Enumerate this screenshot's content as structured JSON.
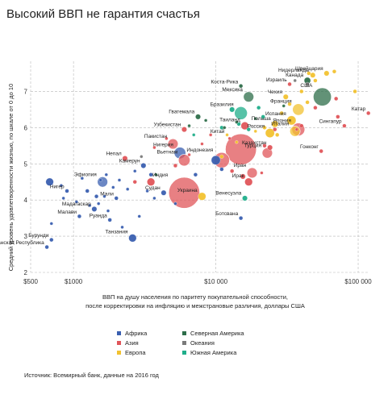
{
  "chart_data": {
    "type": "scatter",
    "title": "Высокий ВВП не гарантия счастья",
    "xlabel_lines": [
      "ВВП на душу населения по паритету покупательной способности,",
      "после корректировки на инфляцию и межстрановые различия, доллары США"
    ],
    "ylabel": "Средний уровень удовлетворенности жизнью, по шкале от 0 до 10",
    "x_scale": "log",
    "xlim": [
      500,
      120000
    ],
    "ylim": [
      2,
      7.7
    ],
    "x_ticks": [
      {
        "value": 500,
        "label": "$500"
      },
      {
        "value": 1000,
        "label": "$1000"
      },
      {
        "value": 10000,
        "label": "$10 000"
      },
      {
        "value": 100000,
        "label": "$100 000"
      }
    ],
    "y_ticks": [
      2,
      3,
      4,
      5,
      6,
      7
    ],
    "grid": "dashed",
    "legend_position": "bottom-left",
    "source": "Источник: Всемирный банк, данные на 2016 год",
    "series": [
      {
        "name": "Африка",
        "color": "#3a5fb0"
      },
      {
        "name": "Азия",
        "color": "#e0555a"
      },
      {
        "name": "Европа",
        "color": "#f2c230"
      },
      {
        "name": "Северная Америка",
        "color": "#2e6e4a"
      },
      {
        "name": "Океания",
        "color": "#7a7a7a"
      },
      {
        "name": "Южная Америка",
        "color": "#1fae8a"
      }
    ],
    "labeled_points": [
      {
        "label": "Нидерланды",
        "series": "Европа",
        "x": 48000,
        "y": 7.45,
        "r": 2
      },
      {
        "label": "Канада",
        "series": "Северная Америка",
        "x": 44000,
        "y": 7.3,
        "r": 2.5
      },
      {
        "label": "Коста-Рика",
        "series": "Северная Америка",
        "x": 15000,
        "y": 7.15,
        "r": 1.5
      },
      {
        "label": "Мексика",
        "series": "Северная Америка",
        "x": 17000,
        "y": 6.85,
        "r": 4
      },
      {
        "label": "Израиль",
        "series": "Азия",
        "x": 33000,
        "y": 7.2,
        "r": 1.5
      },
      {
        "label": "США",
        "series": "Северная Америка",
        "x": 56000,
        "y": 6.85,
        "r": 7
      },
      {
        "label": "Чехия",
        "series": "Европа",
        "x": 31000,
        "y": 6.85,
        "r": 2
      },
      {
        "label": "Катар",
        "series": "Азия",
        "x": 118000,
        "y": 6.4,
        "r": 1.5
      },
      {
        "label": "Бразилия",
        "series": "Южная Америка",
        "x": 15000,
        "y": 6.4,
        "r": 5
      },
      {
        "label": "Франция",
        "series": "Европа",
        "x": 38000,
        "y": 6.5,
        "r": 4.5
      },
      {
        "label": "Гватемала",
        "series": "Северная Америка",
        "x": 7500,
        "y": 6.3,
        "r": 2
      },
      {
        "label": "Япония",
        "series": "Азия",
        "x": 38000,
        "y": 5.95,
        "r": 5
      },
      {
        "label": "Таиланд",
        "series": "Азия",
        "x": 16000,
        "y": 6.05,
        "r": 3
      },
      {
        "label": "Польша",
        "series": "Европа",
        "x": 26000,
        "y": 6.1,
        "r": 2.5
      },
      {
        "label": "Узбекистан",
        "series": "Азия",
        "x": 6000,
        "y": 5.95,
        "r": 2
      },
      {
        "label": "Испания",
        "series": "Европа",
        "x": 34000,
        "y": 6.2,
        "r": 3.5
      },
      {
        "label": "Сингапур",
        "series": "Азия",
        "x": 80000,
        "y": 6.05,
        "r": 1.5
      },
      {
        "label": "Россия",
        "series": "Европа",
        "x": 24000,
        "y": 5.85,
        "r": 3.5
      },
      {
        "label": "Италия",
        "series": "Европа",
        "x": 36000,
        "y": 5.9,
        "r": 4
      },
      {
        "label": "Пакистан",
        "series": "Азия",
        "x": 5000,
        "y": 5.55,
        "r": 4
      },
      {
        "label": "Китай",
        "series": "Азия",
        "x": 15000,
        "y": 5.4,
        "r": 12
      },
      {
        "label": "Казахстан",
        "series": "Азия",
        "x": 24000,
        "y": 5.45,
        "r": 2
      },
      {
        "label": "Гонконг",
        "series": "Азия",
        "x": 55000,
        "y": 5.35,
        "r": 1.5
      },
      {
        "label": "Нигерия",
        "series": "Африка",
        "x": 5600,
        "y": 5.3,
        "r": 4.5
      },
      {
        "label": "Непал",
        "series": "Азия",
        "x": 2300,
        "y": 5.15,
        "r": 2
      },
      {
        "label": "Вьетнам",
        "series": "Азия",
        "x": 6000,
        "y": 5.1,
        "r": 4.5
      },
      {
        "label": "Индонезия",
        "series": "Азия",
        "x": 11000,
        "y": 5.1,
        "r": 6
      },
      {
        "label": "Турция",
        "series": "Азия",
        "x": 23000,
        "y": 5.3,
        "r": 4
      },
      {
        "label": "Камерун",
        "series": "Африка",
        "x": 3100,
        "y": 4.95,
        "r": 2
      },
      {
        "label": "Швейцария",
        "series": "Европа",
        "x": 60000,
        "y": 7.5,
        "r": 2
      },
      {
        "label": "Иран",
        "series": "Азия",
        "x": 18000,
        "y": 4.75,
        "r": 4
      },
      {
        "label": "Ирак",
        "series": "Азия",
        "x": 17000,
        "y": 4.5,
        "r": 3
      },
      {
        "label": "Эфиопия",
        "series": "Африка",
        "x": 1600,
        "y": 4.5,
        "r": 4
      },
      {
        "label": "Нигер",
        "series": "Африка",
        "x": 900,
        "y": 4.25,
        "r": 1.5
      },
      {
        "label": "Индия",
        "series": "Азия",
        "x": 6000,
        "y": 4.2,
        "r": 12
      },
      {
        "label": "Судан",
        "series": "Африка",
        "x": 4300,
        "y": 4.2,
        "r": 2
      },
      {
        "label": "Украина",
        "series": "Европа",
        "x": 8000,
        "y": 4.1,
        "r": 3
      },
      {
        "label": "Венесуэла",
        "series": "Южная Америка",
        "x": 16000,
        "y": 4.05,
        "r": 2
      },
      {
        "label": "Мали",
        "series": "Африка",
        "x": 2000,
        "y": 4.05,
        "r": 1.5
      },
      {
        "label": "Мадагаскар",
        "series": "Африка",
        "x": 1400,
        "y": 3.75,
        "r": 2
      },
      {
        "label": "Малави",
        "series": "Африка",
        "x": 1100,
        "y": 3.55,
        "r": 1.5
      },
      {
        "label": "Руанда",
        "series": "Африка",
        "x": 1800,
        "y": 3.45,
        "r": 1.5
      },
      {
        "label": "Ботсвана",
        "series": "Африка",
        "x": 15000,
        "y": 3.5,
        "r": 1.5
      },
      {
        "label": "Танзания",
        "series": "Африка",
        "x": 2600,
        "y": 2.95,
        "r": 3
      },
      {
        "label": "Бурунди",
        "series": "Африка",
        "x": 700,
        "y": 2.9,
        "r": 1.5
      },
      {
        "label": "Центральная Африканская Республика",
        "series": "Африка",
        "x": 650,
        "y": 2.7,
        "r": 1.5
      }
    ],
    "other_points": [
      {
        "series": "Африка",
        "x": 680,
        "y": 4.5,
        "r": 3
      },
      {
        "series": "Африка",
        "x": 700,
        "y": 3.35,
        "r": 1.2
      },
      {
        "series": "Африка",
        "x": 820,
        "y": 4.4,
        "r": 1.2
      },
      {
        "series": "Африка",
        "x": 850,
        "y": 4.05,
        "r": 1.2
      },
      {
        "series": "Африка",
        "x": 1050,
        "y": 3.95,
        "r": 1.2
      },
      {
        "series": "Африка",
        "x": 1150,
        "y": 4.6,
        "r": 1.2
      },
      {
        "series": "Африка",
        "x": 1250,
        "y": 4.25,
        "r": 1.5
      },
      {
        "series": "Африка",
        "x": 1300,
        "y": 3.85,
        "r": 1.2
      },
      {
        "series": "Африка",
        "x": 1450,
        "y": 4.1,
        "r": 1.5
      },
      {
        "series": "Африка",
        "x": 1500,
        "y": 3.9,
        "r": 1.2
      },
      {
        "series": "Африка",
        "x": 1550,
        "y": 4.55,
        "r": 1.2
      },
      {
        "series": "Африка",
        "x": 1650,
        "y": 4.1,
        "r": 1.2
      },
      {
        "series": "Африка",
        "x": 1700,
        "y": 4.7,
        "r": 1.2
      },
      {
        "series": "Африка",
        "x": 1750,
        "y": 3.7,
        "r": 1.2
      },
      {
        "series": "Африка",
        "x": 1900,
        "y": 4.35,
        "r": 1.2
      },
      {
        "series": "Африка",
        "x": 2100,
        "y": 4.55,
        "r": 1.2
      },
      {
        "series": "Африка",
        "x": 2200,
        "y": 3.25,
        "r": 1.2
      },
      {
        "series": "Африка",
        "x": 2400,
        "y": 4.3,
        "r": 1.2
      },
      {
        "series": "Африка",
        "x": 2700,
        "y": 4.8,
        "r": 1.2
      },
      {
        "series": "Африка",
        "x": 2900,
        "y": 3.55,
        "r": 1.2
      },
      {
        "series": "Африка",
        "x": 3300,
        "y": 4.25,
        "r": 1.2
      },
      {
        "series": "Африка",
        "x": 3500,
        "y": 4.7,
        "r": 1.5
      },
      {
        "series": "Африка",
        "x": 3700,
        "y": 4.05,
        "r": 1.2
      },
      {
        "series": "Африка",
        "x": 5200,
        "y": 3.9,
        "r": 1.2
      },
      {
        "series": "Африка",
        "x": 7200,
        "y": 4.7,
        "r": 1.5
      },
      {
        "series": "Африка",
        "x": 10000,
        "y": 5.1,
        "r": 3.5
      },
      {
        "series": "Африка",
        "x": 11000,
        "y": 4.85,
        "r": 1.5
      },
      {
        "series": "Азия",
        "x": 2700,
        "y": 4.5,
        "r": 1.5
      },
      {
        "series": "Азия",
        "x": 3500,
        "y": 4.5,
        "r": 3
      },
      {
        "series": "Азия",
        "x": 3700,
        "y": 5.45,
        "r": 1.2
      },
      {
        "series": "Азия",
        "x": 4500,
        "y": 5.7,
        "r": 1.2
      },
      {
        "series": "Азия",
        "x": 5200,
        "y": 4.95,
        "r": 1.5
      },
      {
        "series": "Азия",
        "x": 6500,
        "y": 5.25,
        "r": 1.2
      },
      {
        "series": "Азия",
        "x": 8000,
        "y": 5.55,
        "r": 1.2
      },
      {
        "series": "Азия",
        "x": 9200,
        "y": 5.8,
        "r": 1.2
      },
      {
        "series": "Азия",
        "x": 12500,
        "y": 5.7,
        "r": 1.2
      },
      {
        "series": "Азия",
        "x": 13000,
        "y": 4.8,
        "r": 1.5
      },
      {
        "series": "Азия",
        "x": 15500,
        "y": 4.65,
        "r": 2
      },
      {
        "series": "Азия",
        "x": 21000,
        "y": 4.75,
        "r": 1.2
      },
      {
        "series": "Азия",
        "x": 22000,
        "y": 5.5,
        "r": 1.5
      },
      {
        "series": "Азия",
        "x": 26000,
        "y": 5.95,
        "r": 1.5
      },
      {
        "series": "Азия",
        "x": 37000,
        "y": 5.95,
        "r": 1.2
      },
      {
        "series": "Азия",
        "x": 50000,
        "y": 6.55,
        "r": 1.5
      },
      {
        "series": "Азия",
        "x": 70000,
        "y": 6.8,
        "r": 1.5
      },
      {
        "series": "Азия",
        "x": 72000,
        "y": 6.3,
        "r": 1.5
      },
      {
        "series": "Азия",
        "x": 40000,
        "y": 6.05,
        "r": 1.5
      },
      {
        "series": "Европа",
        "x": 11000,
        "y": 5.2,
        "r": 1.5
      },
      {
        "series": "Европа",
        "x": 12000,
        "y": 5.8,
        "r": 1.2
      },
      {
        "series": "Европа",
        "x": 14000,
        "y": 5.6,
        "r": 1.2
      },
      {
        "series": "Европа",
        "x": 19000,
        "y": 5.9,
        "r": 1.2
      },
      {
        "series": "Европа",
        "x": 22000,
        "y": 6.0,
        "r": 1.5
      },
      {
        "series": "Европа",
        "x": 27000,
        "y": 5.8,
        "r": 1.5
      },
      {
        "series": "Европа",
        "x": 29000,
        "y": 6.4,
        "r": 1.5
      },
      {
        "series": "Европа",
        "x": 33000,
        "y": 6.65,
        "r": 1.5
      },
      {
        "series": "Европа",
        "x": 40000,
        "y": 7.0,
        "r": 1.5
      },
      {
        "series": "Европа",
        "x": 45000,
        "y": 7.5,
        "r": 1.5
      },
      {
        "series": "Европа",
        "x": 50000,
        "y": 7.3,
        "r": 1.5
      },
      {
        "series": "Европа",
        "x": 44000,
        "y": 6.7,
        "r": 1.5
      },
      {
        "series": "Европа",
        "x": 68000,
        "y": 7.55,
        "r": 1.5
      },
      {
        "series": "Европа",
        "x": 95000,
        "y": 7.0,
        "r": 1.5
      },
      {
        "series": "Северная Америка",
        "x": 3800,
        "y": 4.7,
        "r": 1.2
      },
      {
        "series": "Северная Америка",
        "x": 6500,
        "y": 6.05,
        "r": 1.2
      },
      {
        "series": "Северная Америка",
        "x": 8500,
        "y": 6.2,
        "r": 1.2
      },
      {
        "series": "Северная Америка",
        "x": 11500,
        "y": 6.0,
        "r": 1.2
      },
      {
        "series": "Северная Америка",
        "x": 14000,
        "y": 6.15,
        "r": 1.2
      },
      {
        "series": "Северная Америка",
        "x": 19000,
        "y": 6.25,
        "r": 1.2
      },
      {
        "series": "Северная Америка",
        "x": 30000,
        "y": 6.6,
        "r": 1.2
      },
      {
        "series": "Южная Америка",
        "x": 7000,
        "y": 5.8,
        "r": 1.2
      },
      {
        "series": "Южная Америка",
        "x": 11000,
        "y": 6.0,
        "r": 1.5
      },
      {
        "series": "Южная Америка",
        "x": 13000,
        "y": 6.5,
        "r": 2
      },
      {
        "series": "Южная Америка",
        "x": 14500,
        "y": 6.1,
        "r": 1.5
      },
      {
        "series": "Южная Америка",
        "x": 17000,
        "y": 5.95,
        "r": 1.5
      },
      {
        "series": "Южная Америка",
        "x": 20000,
        "y": 6.55,
        "r": 1.5
      },
      {
        "series": "Южная Америка",
        "x": 21500,
        "y": 6.3,
        "r": 1.5
      },
      {
        "series": "Океания",
        "x": 3000,
        "y": 5.2,
        "r": 1.2
      },
      {
        "series": "Океания",
        "x": 44000,
        "y": 7.2,
        "r": 1.5
      },
      {
        "series": "Океания",
        "x": 36000,
        "y": 7.3,
        "r": 1.2
      }
    ]
  }
}
